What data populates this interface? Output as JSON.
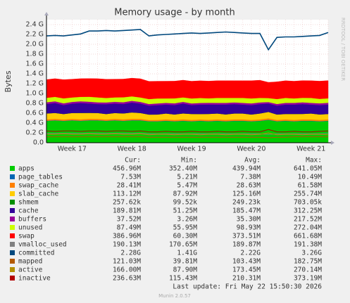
{
  "chart_data": {
    "type": "stacked_area",
    "title": "Memory usage - by month",
    "y_label": "Bytes",
    "side_text": "RRDTOOL / TOBI OETIKER",
    "categories": [
      null,
      null,
      null,
      "Week 17",
      null,
      null,
      null,
      null,
      null,
      null,
      "Week 18",
      null,
      null,
      null,
      null,
      null,
      null,
      "Week 19",
      null,
      null,
      null,
      null,
      null,
      null,
      "Week 20",
      null,
      null,
      null,
      null,
      null,
      null,
      "Week 21",
      null,
      null
    ],
    "ylim": [
      0,
      2.5
    ],
    "yticks": [
      {
        "value": 0,
        "label": "0.0"
      },
      {
        "value": 0.2,
        "label": "0.2 G"
      },
      {
        "value": 0.4,
        "label": "0.4 G"
      },
      {
        "value": 0.6,
        "label": "0.6 G"
      },
      {
        "value": 0.8,
        "label": "0.8 G"
      },
      {
        "value": 1.0,
        "label": "1.0 G"
      },
      {
        "value": 1.2,
        "label": "1.2 G"
      },
      {
        "value": 1.4,
        "label": "1.4 G"
      },
      {
        "value": 1.6,
        "label": "1.6 G"
      },
      {
        "value": 1.8,
        "label": "1.8 G"
      },
      {
        "value": 2.0,
        "label": "2.0 G"
      },
      {
        "value": 2.2,
        "label": "2.2 G"
      },
      {
        "value": 2.4,
        "label": "2.4 G"
      }
    ],
    "grid": true,
    "stats_header": [
      "Cur:",
      "Min:",
      "Avg:",
      "Max:"
    ],
    "series": [
      {
        "name": "apps",
        "color": "#00cc00",
        "kind": "area",
        "stats": [
          "456.96M",
          "352.40M",
          "439.94M",
          "641.05M"
        ],
        "values": [
          0.44,
          0.45,
          0.44,
          0.45,
          0.44,
          0.45,
          0.45,
          0.44,
          0.45,
          0.44,
          0.45,
          0.45,
          0.43,
          0.43,
          0.44,
          0.43,
          0.44,
          0.43,
          0.44,
          0.43,
          0.44,
          0.43,
          0.44,
          0.44,
          0.43,
          0.44,
          0.46,
          0.43,
          0.44,
          0.43,
          0.44,
          0.44,
          0.43,
          0.44
        ]
      },
      {
        "name": "page_tables",
        "color": "#0066b3",
        "kind": "area",
        "stats": [
          "7.53M",
          "5.21M",
          "7.38M",
          "10.49M"
        ],
        "values": [
          0.007,
          0.007,
          0.007,
          0.007,
          0.008,
          0.007,
          0.007,
          0.007,
          0.007,
          0.007,
          0.008,
          0.007,
          0.007,
          0.007,
          0.007,
          0.007,
          0.007,
          0.007,
          0.007,
          0.008,
          0.007,
          0.007,
          0.007,
          0.007,
          0.007,
          0.007,
          0.007,
          0.007,
          0.007,
          0.007,
          0.007,
          0.007,
          0.007,
          0.007
        ]
      },
      {
        "name": "swap_cache",
        "color": "#ff8000",
        "kind": "area",
        "stats": [
          "28.41M",
          "5.47M",
          "28.63M",
          "61.58M"
        ],
        "values": [
          0.028,
          0.029,
          0.027,
          0.028,
          0.028,
          0.03,
          0.028,
          0.027,
          0.028,
          0.029,
          0.028,
          0.028,
          0.026,
          0.027,
          0.028,
          0.028,
          0.029,
          0.028,
          0.027,
          0.028,
          0.028,
          0.029,
          0.028,
          0.028,
          0.027,
          0.028,
          0.03,
          0.027,
          0.028,
          0.028,
          0.029,
          0.028,
          0.028,
          0.028
        ]
      },
      {
        "name": "slab_cache",
        "color": "#ffcc00",
        "kind": "area",
        "stats": [
          "113.12M",
          "87.92M",
          "125.16M",
          "255.74M"
        ],
        "values": [
          0.12,
          0.12,
          0.11,
          0.12,
          0.13,
          0.12,
          0.12,
          0.11,
          0.12,
          0.12,
          0.13,
          0.12,
          0.11,
          0.11,
          0.12,
          0.11,
          0.12,
          0.12,
          0.11,
          0.12,
          0.12,
          0.11,
          0.12,
          0.12,
          0.11,
          0.12,
          0.13,
          0.11,
          0.11,
          0.12,
          0.11,
          0.12,
          0.11,
          0.11
        ]
      },
      {
        "name": "shmem",
        "color": "#008f00",
        "kind": "area",
        "stats": [
          "257.62k",
          "99.52k",
          "249.23k",
          "703.05k"
        ],
        "values": [
          0.0003,
          0.0003,
          0.0003,
          0.0003,
          0.0003,
          0.0003,
          0.0003,
          0.0003,
          0.0003,
          0.0003,
          0.0003,
          0.0003,
          0.0002,
          0.0002,
          0.0002,
          0.0002,
          0.0002,
          0.0002,
          0.0002,
          0.0002,
          0.0002,
          0.0002,
          0.0002,
          0.0002,
          0.0002,
          0.0002,
          0.0002,
          0.0002,
          0.0002,
          0.0002,
          0.0002,
          0.0002,
          0.0002,
          0.0002
        ]
      },
      {
        "name": "cache",
        "color": "#330099",
        "kind": "area",
        "stats": [
          "189.81M",
          "51.25M",
          "185.47M",
          "312.25M"
        ],
        "values": [
          0.19,
          0.2,
          0.18,
          0.19,
          0.2,
          0.19,
          0.18,
          0.2,
          0.19,
          0.19,
          0.2,
          0.19,
          0.18,
          0.19,
          0.18,
          0.19,
          0.2,
          0.18,
          0.19,
          0.19,
          0.18,
          0.2,
          0.19,
          0.18,
          0.19,
          0.19,
          0.17,
          0.18,
          0.19,
          0.19,
          0.2,
          0.18,
          0.19,
          0.19
        ]
      },
      {
        "name": "buffers",
        "color": "#990099",
        "kind": "area",
        "stats": [
          "37.52M",
          "3.26M",
          "35.30M",
          "217.52M"
        ],
        "values": [
          0.037,
          0.036,
          0.037,
          0.035,
          0.036,
          0.037,
          0.036,
          0.035,
          0.036,
          0.037,
          0.036,
          0.035,
          0.034,
          0.035,
          0.035,
          0.036,
          0.035,
          0.034,
          0.035,
          0.036,
          0.035,
          0.034,
          0.035,
          0.035,
          0.036,
          0.035,
          0.03,
          0.034,
          0.035,
          0.035,
          0.036,
          0.035,
          0.036,
          0.037
        ]
      },
      {
        "name": "unused",
        "color": "#ccff00",
        "kind": "area",
        "stats": [
          "87.49M",
          "55.95M",
          "98.93M",
          "272.04M"
        ],
        "values": [
          0.09,
          0.09,
          0.1,
          0.09,
          0.09,
          0.1,
          0.1,
          0.09,
          0.09,
          0.1,
          0.09,
          0.09,
          0.1,
          0.1,
          0.09,
          0.1,
          0.09,
          0.1,
          0.1,
          0.09,
          0.1,
          0.1,
          0.09,
          0.1,
          0.1,
          0.09,
          0.08,
          0.1,
          0.1,
          0.09,
          0.09,
          0.1,
          0.09,
          0.09
        ]
      },
      {
        "name": "swap",
        "color": "#ff0000",
        "kind": "area",
        "stats": [
          "386.96M",
          "60.30M",
          "373.51M",
          "661.68M"
        ],
        "values": [
          0.37,
          0.37,
          0.38,
          0.37,
          0.37,
          0.37,
          0.38,
          0.38,
          0.37,
          0.37,
          0.37,
          0.38,
          0.36,
          0.35,
          0.35,
          0.35,
          0.35,
          0.35,
          0.35,
          0.35,
          0.35,
          0.35,
          0.35,
          0.35,
          0.36,
          0.36,
          0.32,
          0.35,
          0.35,
          0.35,
          0.35,
          0.35,
          0.36,
          0.36
        ]
      },
      {
        "name": "vmalloc_used",
        "color": "#808080",
        "kind": "line",
        "stats": [
          "190.13M",
          "170.65M",
          "189.87M",
          "191.38M"
        ],
        "values": [
          0.19,
          0.19,
          0.19,
          0.19,
          0.19,
          0.19,
          0.19,
          0.19,
          0.19,
          0.19,
          0.19,
          0.19,
          0.18,
          0.18,
          0.18,
          0.18,
          0.18,
          0.18,
          0.18,
          0.18,
          0.18,
          0.18,
          0.18,
          0.18,
          0.18,
          0.18,
          0.17,
          0.18,
          0.18,
          0.18,
          0.18,
          0.18,
          0.18,
          0.19
        ]
      },
      {
        "name": "committed",
        "color": "#00487d",
        "kind": "line",
        "stats": [
          "2.28G",
          "1.41G",
          "2.22G",
          "3.26G"
        ],
        "values": [
          2.17,
          2.18,
          2.17,
          2.19,
          2.21,
          2.27,
          2.27,
          2.28,
          2.27,
          2.28,
          2.29,
          2.3,
          2.17,
          2.19,
          2.2,
          2.21,
          2.22,
          2.23,
          2.22,
          2.23,
          2.24,
          2.25,
          2.24,
          2.23,
          2.22,
          2.22,
          1.89,
          2.14,
          2.15,
          2.15,
          2.16,
          2.17,
          2.18,
          2.24
        ]
      },
      {
        "name": "mapped",
        "color": "#b35a00",
        "kind": "line",
        "stats": [
          "121.03M",
          "39.81M",
          "103.43M",
          "182.75M"
        ],
        "values": [
          0.12,
          0.12,
          0.12,
          0.12,
          0.12,
          0.12,
          0.12,
          0.12,
          0.12,
          0.12,
          0.12,
          0.12,
          0.11,
          0.11,
          0.11,
          0.11,
          0.11,
          0.11,
          0.11,
          0.11,
          0.11,
          0.11,
          0.11,
          0.11,
          0.11,
          0.11,
          0.1,
          0.11,
          0.11,
          0.12,
          0.12,
          0.12,
          0.12,
          0.12
        ]
      },
      {
        "name": "active",
        "color": "#b38f00",
        "kind": "line",
        "stats": [
          "166.00M",
          "87.90M",
          "173.45M",
          "270.14M"
        ],
        "values": [
          0.17,
          0.17,
          0.18,
          0.17,
          0.17,
          0.18,
          0.17,
          0.17,
          0.18,
          0.17,
          0.17,
          0.18,
          0.16,
          0.17,
          0.17,
          0.16,
          0.17,
          0.17,
          0.16,
          0.17,
          0.17,
          0.16,
          0.17,
          0.17,
          0.16,
          0.17,
          0.2,
          0.16,
          0.17,
          0.17,
          0.16,
          0.17,
          0.17,
          0.16
        ]
      },
      {
        "name": "inactive",
        "color": "#b30000",
        "kind": "line",
        "stats": [
          "236.63M",
          "115.43M",
          "210.31M",
          "373.19M"
        ],
        "values": [
          0.24,
          0.23,
          0.24,
          0.24,
          0.23,
          0.24,
          0.24,
          0.23,
          0.24,
          0.24,
          0.23,
          0.24,
          0.22,
          0.22,
          0.23,
          0.22,
          0.22,
          0.23,
          0.22,
          0.22,
          0.23,
          0.22,
          0.22,
          0.23,
          0.22,
          0.22,
          0.27,
          0.22,
          0.22,
          0.23,
          0.22,
          0.22,
          0.23,
          0.24
        ]
      }
    ],
    "last_update": "Last update: Fri May 22 15:50:30 2026",
    "footer": "Munin 2.0.57"
  }
}
